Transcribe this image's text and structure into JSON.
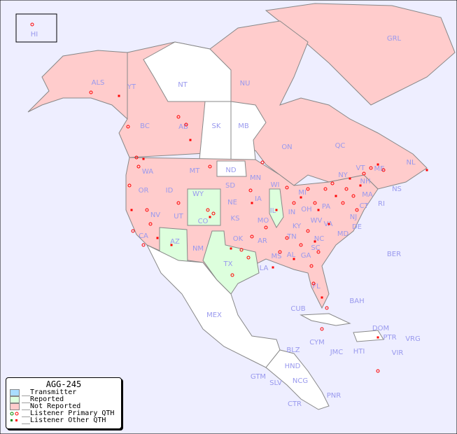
{
  "map": {
    "colors": {
      "ocean": "#eeeeff",
      "transmitter": "#aaddff",
      "reported": "#ddffdd",
      "not_reported": "#ffcccc",
      "other_land": "#ffffff",
      "label": "#9999ee",
      "listener": "#ff0000",
      "listener_alt": "#008800"
    },
    "labels": [
      "HI",
      "ALS",
      "YT",
      "NT",
      "NU",
      "GRL",
      "BC",
      "AB",
      "SK",
      "MB",
      "ON",
      "QC",
      "NL",
      "NS",
      "WA",
      "OR",
      "ID",
      "MT",
      "ND",
      "SD",
      "MN",
      "WI",
      "MI",
      "NY",
      "VT",
      "NH",
      "ME",
      "MA",
      "CT",
      "RI",
      "NJ",
      "DE",
      "MD",
      "PA",
      "OH",
      "IN",
      "IL",
      "IA",
      "NE",
      "WY",
      "NV",
      "CA",
      "UT",
      "CO",
      "KS",
      "MO",
      "KY",
      "WV",
      "VA",
      "NC",
      "TN",
      "SC",
      "AR",
      "OK",
      "AZ",
      "NM",
      "TX",
      "LA",
      "MS",
      "AL",
      "GA",
      "FL",
      "BER",
      "BAH",
      "CUB",
      "MEX",
      "DOM",
      "PTR",
      "VRG",
      "CYM",
      "JMC",
      "HTI",
      "VIR",
      "BLZ",
      "HND",
      "GTM",
      "SLV",
      "NCG",
      "CTR",
      "PNR"
    ]
  },
  "legend": {
    "title": "AGG-245",
    "items": [
      "__Transmitter",
      "__Reported",
      "__Not Reported",
      "__Listener Primary QTH",
      "__Listener Other QTH"
    ]
  }
}
